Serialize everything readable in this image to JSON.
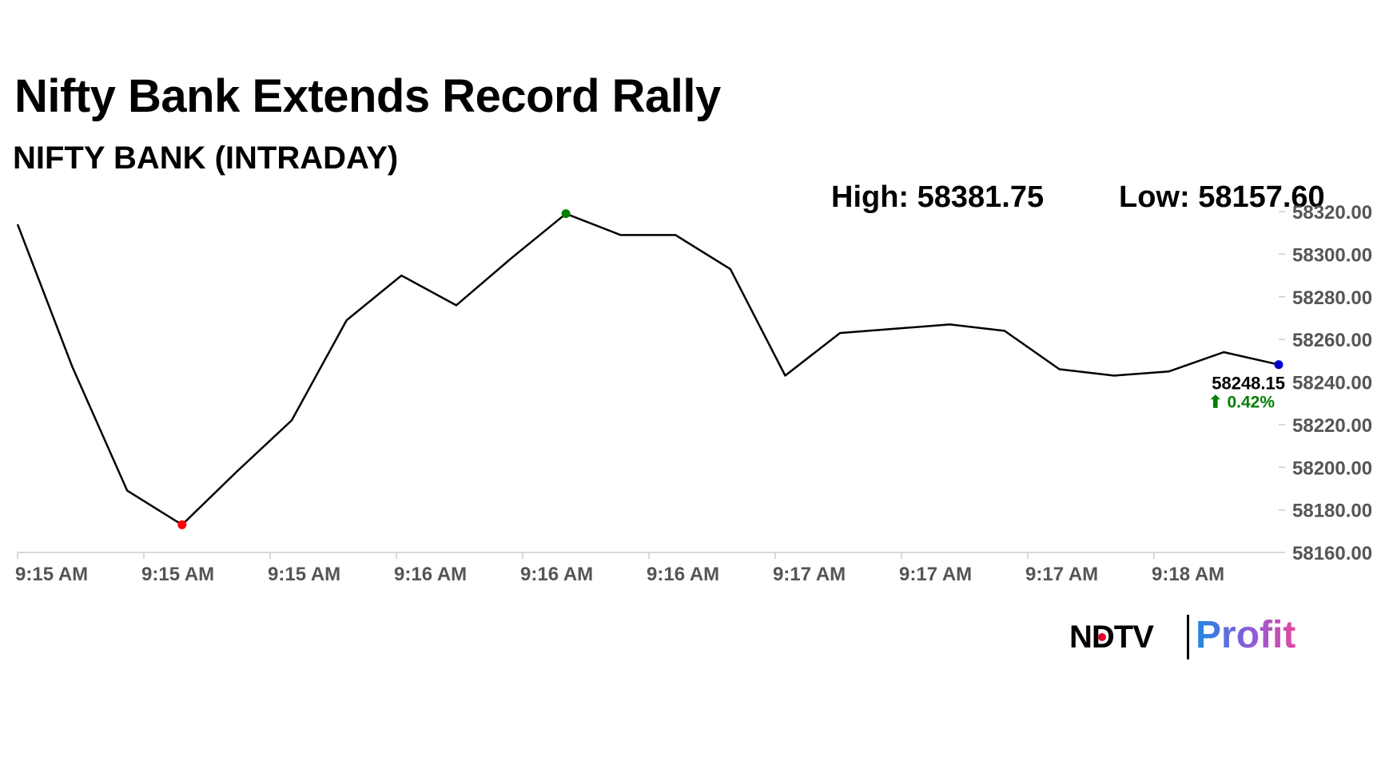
{
  "header": {
    "title": "Nifty Bank Extends Record Rally",
    "subtitle": "NIFTY BANK (INTRADAY)"
  },
  "stats": {
    "high": "High: 58381.75",
    "low": "Low: 58157.60"
  },
  "brand": {
    "ndtv": "NDTV",
    "profit": "Profit"
  },
  "chart_data": {
    "type": "line",
    "ylim": [
      58160,
      58320
    ],
    "yticks": [
      58160,
      58180,
      58200,
      58220,
      58240,
      58260,
      58280,
      58300,
      58320
    ],
    "ytick_labels": [
      "58160.00",
      "58180.00",
      "58200.00",
      "58220.00",
      "58240.00",
      "58260.00",
      "58280.00",
      "58300.00",
      "58320.00"
    ],
    "xtick_labels": [
      "9:15 AM",
      "9:15 AM",
      "9:15 AM",
      "9:16 AM",
      "9:16 AM",
      "9:16 AM",
      "9:17 AM",
      "9:17 AM",
      "9:17 AM",
      "9:18 AM"
    ],
    "series": [
      {
        "values": [
          58314,
          58247,
          58189,
          58173,
          58198,
          58222,
          58269,
          58290,
          58276,
          58298,
          58319,
          58309,
          58309,
          58293,
          58243,
          58263,
          58265,
          58267,
          58264,
          58246,
          58243,
          58245,
          58254,
          58248.15
        ],
        "color": "#000000"
      }
    ],
    "markers": [
      {
        "role": "low",
        "index": 3,
        "color": "#ff0000"
      },
      {
        "role": "high",
        "index": 10,
        "color": "#008000"
      },
      {
        "role": "last",
        "index": 23,
        "color": "#0000cc"
      }
    ],
    "last_label": {
      "value": "58248.15",
      "change": "⬆ 0.42%",
      "change_color": "#008000"
    },
    "grid": false,
    "axis_color": "#cccccc"
  }
}
